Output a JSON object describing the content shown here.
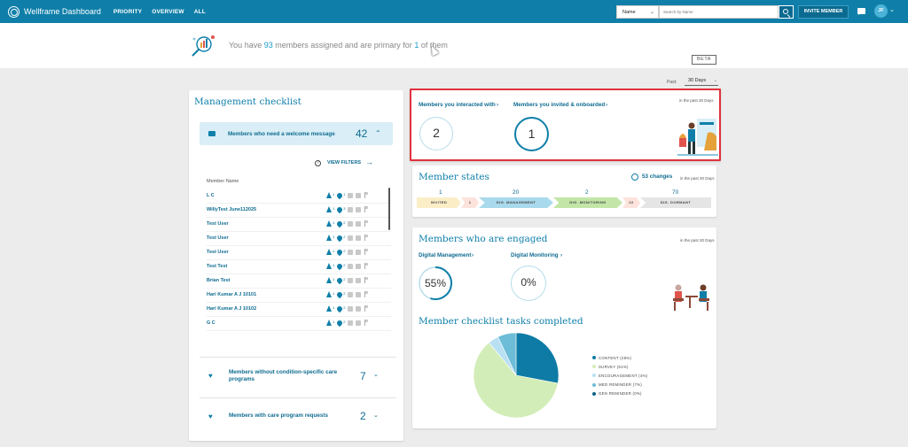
{
  "app": {
    "title": "Wellframe Dashboard"
  },
  "nav": {
    "items": [
      "PRIORITY",
      "OVERVIEW",
      "ALL"
    ]
  },
  "search": {
    "select_value": "Name",
    "placeholder": "Search by Name"
  },
  "header": {
    "invite_label": "INVITE MEMBER",
    "avatar_initials": "JF"
  },
  "banner": {
    "prefix": "You have ",
    "assigned": "93",
    "middle": " members assigned and are primary for ",
    "primary": "1",
    "suffix": " of them"
  },
  "beta_label": "BETA",
  "period": {
    "label": "Past:",
    "value": "30 Days"
  },
  "management": {
    "title": "Management checklist",
    "welcome": {
      "label": "Members who need a welcome message",
      "count": "42"
    },
    "view_filters": "VIEW FILTERS",
    "column_header": "Member Name",
    "members": [
      {
        "name": "L C",
        "c1": "1",
        "c2": "1"
      },
      {
        "name": "WillyTest June112025",
        "c1": "1",
        "c2": "3"
      },
      {
        "name": "Test User",
        "c1": "1",
        "c2": "2"
      },
      {
        "name": "Test User",
        "c1": "1",
        "c2": "2"
      },
      {
        "name": "Test User",
        "c1": "1",
        "c2": "2"
      },
      {
        "name": "Test Test",
        "c1": "1",
        "c2": "2"
      },
      {
        "name": "Brian Test",
        "c1": "1",
        "c2": "2"
      },
      {
        "name": "Hari Kumar A J 10101",
        "c1": "1",
        "c2": "2"
      },
      {
        "name": "Hari Kumar A J 10102",
        "c1": "1",
        "c2": "2"
      },
      {
        "name": "G C",
        "c1": "1",
        "c2": "2"
      }
    ],
    "condition": {
      "label_line1": "Members without condition-specific care",
      "label_line2": "programs",
      "count": "7"
    },
    "requests": {
      "label": "Members with care program requests",
      "count": "2"
    }
  },
  "interacted": {
    "interacted_title": "Members you interacted with",
    "interacted_count": "2",
    "invited_title": "Members you invited & onboarded",
    "invited_count": "1",
    "period_note": "in the past 30 Days"
  },
  "states": {
    "title": "Member states",
    "changes": "53 changes",
    "period_note": "in the past 30 Days",
    "stages": [
      {
        "count": "1",
        "label": "INVITED"
      },
      {
        "count": "1",
        "label": ""
      },
      {
        "count": "20",
        "label": "DIG. MANAGEMENT"
      },
      {
        "count": "2",
        "label": "DIG. MONITORING"
      },
      {
        "count": "22",
        "label": ""
      },
      {
        "count": "70",
        "label": "DIG. DORMANT"
      }
    ]
  },
  "engaged": {
    "title": "Members who are engaged",
    "period_note": "in the past 30 Days",
    "digital_management": {
      "title": "Digital Management",
      "percent": "55%"
    },
    "digital_monitoring": {
      "title": "Digital Monitoring",
      "percent": "0%"
    }
  },
  "tasks": {
    "title": "Member checklist tasks completed"
  },
  "chart_data": {
    "type": "pie",
    "title": "Member checklist tasks completed",
    "categories": [
      "CONTENT (28%)",
      "SURVEY (61%)",
      "ENCOURAGEMENT (4%)",
      "MED REMINDER (7%)",
      "GEN REMINDER (0%)"
    ],
    "values": [
      28,
      61,
      4,
      7,
      0
    ],
    "colors": [
      "#0d7ba5",
      "#d3edb8",
      "#b8e0f2",
      "#6dbcd8",
      "#0d6483"
    ],
    "legend": "right"
  },
  "colors": {
    "brand": "#0f7fa9",
    "highlight": "#e0323c"
  },
  "icons": [
    "logo-icon",
    "chevron-down-icon",
    "search-icon",
    "chat-icon",
    "message-icon",
    "help-icon",
    "arrow-right-icon",
    "heart-icon",
    "people-icon"
  ]
}
